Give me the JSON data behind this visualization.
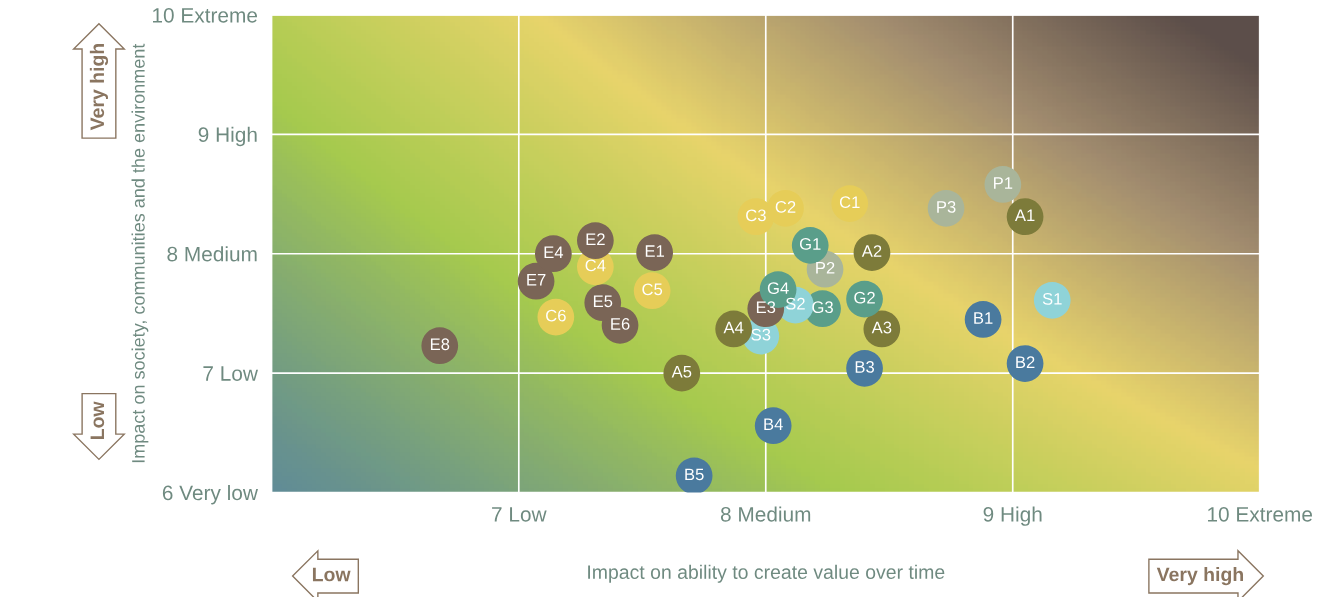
{
  "chart_data": {
    "type": "scatter",
    "xlabel": "Impact on ability to create value over time",
    "ylabel": "Impact on society, communities and the environment",
    "xlim": [
      6,
      10
    ],
    "ylim": [
      6,
      10
    ],
    "xticks": [
      {
        "value": 7,
        "label": "7 Low"
      },
      {
        "value": 8,
        "label": "8 Medium"
      },
      {
        "value": 9,
        "label": "9 High"
      },
      {
        "value": 10,
        "label": "10 Extreme"
      }
    ],
    "yticks": [
      {
        "value": 6,
        "label": "6 Very low"
      },
      {
        "value": 7,
        "label": "7 Low"
      },
      {
        "value": 8,
        "label": "8 Medium"
      },
      {
        "value": 9,
        "label": "9 High"
      },
      {
        "value": 10,
        "label": "10 Extreme"
      }
    ],
    "grid": true,
    "marker": "circle",
    "x": [
      8.96,
      9.05,
      8.73,
      8.34,
      8.08,
      7.96,
      8.18,
      8.43,
      8.24,
      7.31,
      7.14,
      7.55,
      7.31,
      7.07,
      7.54,
      7.34,
      7.15,
      7.41,
      6.68,
      8.05,
      8.0,
      8.12,
      8.23,
      8.4,
      8.47,
      7.87,
      7.98,
      8.88,
      9.16,
      9.05,
      8.4,
      7.66,
      8.03,
      7.71
    ],
    "values": [
      8.58,
      8.31,
      8.38,
      8.42,
      8.38,
      8.31,
      8.07,
      8.01,
      7.87,
      8.11,
      8.0,
      8.01,
      7.89,
      7.77,
      7.69,
      7.59,
      7.47,
      7.4,
      7.23,
      7.7,
      7.54,
      7.57,
      7.54,
      7.62,
      7.37,
      7.37,
      7.31,
      7.45,
      7.61,
      7.08,
      7.04,
      7.0,
      6.56,
      6.14
    ],
    "colors": [
      "#a9b59a",
      "#7d7b3a",
      "#a9b59a",
      "#e6cd58",
      "#e6cd58",
      "#e6cd58",
      "#5a9e8a",
      "#7d7b3a",
      "#a9b59a",
      "#7a6556",
      "#7a6556",
      "#7a6556",
      "#e6cd58",
      "#7a6556",
      "#e6cd58",
      "#7a6556",
      "#e6cd58",
      "#7a6556",
      "#7a6556",
      "#5a9e8a",
      "#7a6556",
      "#8fd3d8",
      "#5a9e8a",
      "#5a9e8a",
      "#7d7b3a",
      "#7d7b3a",
      "#8fd3d8",
      "#4a7a9e",
      "#8fd3d8",
      "#4a7a9e",
      "#4a7a9e",
      "#7d7b3a",
      "#4a7a9e",
      "#4a7a9e"
    ],
    "annotations": [
      "Very high",
      "Low",
      "Low",
      "Very high",
      {
        "text": "P1",
        "x": 8.96,
        "y": 8.58
      },
      {
        "text": "A1",
        "x": 9.05,
        "y": 8.31
      },
      {
        "text": "P3",
        "x": 8.73,
        "y": 8.38
      },
      {
        "text": "C1",
        "x": 8.34,
        "y": 8.42
      },
      {
        "text": "C2",
        "x": 8.08,
        "y": 8.38
      },
      {
        "text": "C3",
        "x": 7.96,
        "y": 8.31
      },
      {
        "text": "G1",
        "x": 8.18,
        "y": 8.07
      },
      {
        "text": "A2",
        "x": 8.43,
        "y": 8.01
      },
      {
        "text": "P2",
        "x": 8.24,
        "y": 7.87
      },
      {
        "text": "E2",
        "x": 7.31,
        "y": 8.11
      },
      {
        "text": "E4",
        "x": 7.14,
        "y": 8.0
      },
      {
        "text": "E1",
        "x": 7.55,
        "y": 8.01
      },
      {
        "text": "C4",
        "x": 7.31,
        "y": 7.89
      },
      {
        "text": "E7",
        "x": 7.07,
        "y": 7.77
      },
      {
        "text": "C5",
        "x": 7.54,
        "y": 7.69
      },
      {
        "text": "E5",
        "x": 7.34,
        "y": 7.59
      },
      {
        "text": "C6",
        "x": 7.15,
        "y": 7.47
      },
      {
        "text": "E6",
        "x": 7.41,
        "y": 7.4
      },
      {
        "text": "E8",
        "x": 6.68,
        "y": 7.23
      },
      {
        "text": "G4",
        "x": 8.05,
        "y": 7.7
      },
      {
        "text": "E3",
        "x": 8.0,
        "y": 7.54
      },
      {
        "text": "S2",
        "x": 8.12,
        "y": 7.57
      },
      {
        "text": "G3",
        "x": 8.23,
        "y": 7.54
      },
      {
        "text": "G2",
        "x": 8.4,
        "y": 7.62
      },
      {
        "text": "A3",
        "x": 8.47,
        "y": 7.37
      },
      {
        "text": "A4",
        "x": 7.87,
        "y": 7.37
      },
      {
        "text": "S3",
        "x": 7.98,
        "y": 7.31
      },
      {
        "text": "B1",
        "x": 8.88,
        "y": 7.45
      },
      {
        "text": "S1",
        "x": 9.16,
        "y": 7.61
      },
      {
        "text": "B2",
        "x": 9.05,
        "y": 7.08
      },
      {
        "text": "B3",
        "x": 8.4,
        "y": 7.04
      },
      {
        "text": "A5",
        "x": 7.66,
        "y": 7.0
      },
      {
        "text": "B4",
        "x": 8.03,
        "y": 6.56
      },
      {
        "text": "B5",
        "x": 7.71,
        "y": 6.14
      }
    ]
  }
}
